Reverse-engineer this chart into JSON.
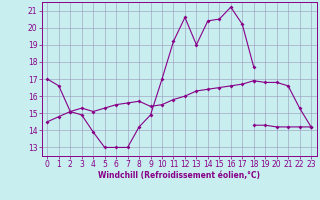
{
  "xlabel": "Windchill (Refroidissement éolien,°C)",
  "bg_color": "#c8eef0",
  "line_color": "#880088",
  "grid_color": "#9999bb",
  "xlim_min": -0.5,
  "xlim_max": 23.5,
  "ylim_min": 12.5,
  "ylim_max": 21.5,
  "yticks": [
    13,
    14,
    15,
    16,
    17,
    18,
    19,
    20,
    21
  ],
  "xticks": [
    0,
    1,
    2,
    3,
    4,
    5,
    6,
    7,
    8,
    9,
    10,
    11,
    12,
    13,
    14,
    15,
    16,
    17,
    18,
    19,
    20,
    21,
    22,
    23
  ],
  "curve1_x": [
    0,
    1,
    2,
    3,
    4,
    5,
    6,
    7,
    8,
    9,
    10,
    11,
    12,
    13,
    14,
    15,
    16,
    17,
    18
  ],
  "curve1_y": [
    17.0,
    16.6,
    15.1,
    14.9,
    13.9,
    13.0,
    13.0,
    13.0,
    14.2,
    14.9,
    17.0,
    19.2,
    20.6,
    19.0,
    20.4,
    20.5,
    21.2,
    20.2,
    17.7
  ],
  "curve2_x": [
    0,
    1,
    2,
    3,
    4,
    5,
    6,
    7,
    8,
    9,
    10,
    11,
    12,
    13,
    14,
    15,
    16,
    17,
    18
  ],
  "curve2_y": [
    14.5,
    14.8,
    15.1,
    15.3,
    15.1,
    15.3,
    15.5,
    15.6,
    15.7,
    15.4,
    15.5,
    15.8,
    16.0,
    16.3,
    16.4,
    16.5,
    16.6,
    16.7,
    16.9
  ],
  "curve3_x": [
    18,
    19,
    20,
    21,
    22,
    23
  ],
  "curve3_y": [
    16.9,
    16.8,
    16.8,
    16.6,
    15.3,
    14.2
  ],
  "curve4_x": [
    18,
    19,
    20,
    21,
    22,
    23
  ],
  "curve4_y": [
    14.3,
    14.3,
    14.2,
    14.2,
    14.2,
    14.2
  ],
  "tick_fontsize": 5.5,
  "xlabel_fontsize": 5.5
}
